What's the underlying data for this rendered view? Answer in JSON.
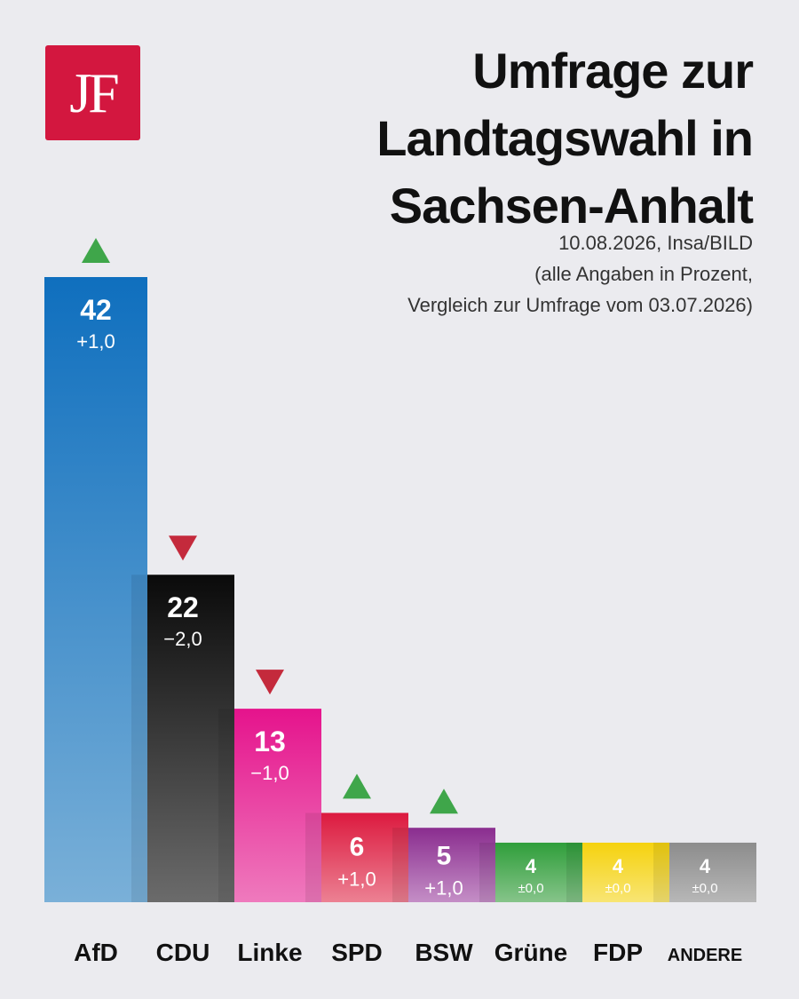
{
  "logo": {
    "text": "JF"
  },
  "title_lines": [
    "Umfrage zur",
    "Landtagswahl in",
    "Sachsen-Anhalt"
  ],
  "subtitle_lines": [
    "10.08.2026, Insa/BILD",
    "(alle Angaben in Prozent,",
    "Vergleich zur Umfrage vom 03.07.2026)"
  ],
  "colors": {
    "background": "#ebebef",
    "logo": "#d3173f",
    "arrow_up": "#3fa64a",
    "arrow_down": "#c42a3c"
  },
  "chart_data": {
    "type": "bar",
    "title": "Umfrage zur Landtagswahl in Sachsen-Anhalt",
    "categories": [
      "AfD",
      "CDU",
      "Linke",
      "SPD",
      "BSW",
      "Grüne",
      "FDP",
      "ANDERE"
    ],
    "values": [
      42,
      22,
      13,
      6,
      5,
      4,
      4,
      4
    ],
    "changes": [
      "+1,0",
      "−2,0",
      "−1,0",
      "+1,0",
      "+1,0",
      "±0,0",
      "±0,0",
      "±0,0"
    ],
    "trend": [
      "up",
      "down",
      "down",
      "up",
      "up",
      "none",
      "none",
      "none"
    ],
    "bar_colors": [
      [
        "#0f6fbe",
        "#7ab0d8"
      ],
      [
        "#0a0a0a",
        "#6b6b6b"
      ],
      [
        "#e5138c",
        "#ef7abd"
      ],
      [
        "#dc1a3f",
        "#ec8193"
      ],
      [
        "#8a2d8f",
        "#c48ec6"
      ],
      [
        "#2f9e3a",
        "#86c48a"
      ],
      [
        "#f5d20e",
        "#f8e574"
      ],
      [
        "#8c8c8c",
        "#b7b7b7"
      ]
    ],
    "value_colors": [
      "#ffffff",
      "#ffffff",
      "#ffffff",
      "#ffffff",
      "#ffffff",
      "#ffffff",
      "#111111",
      "#ffffff"
    ],
    "xlabel": "",
    "ylabel": "",
    "ylim": [
      0,
      42
    ]
  }
}
